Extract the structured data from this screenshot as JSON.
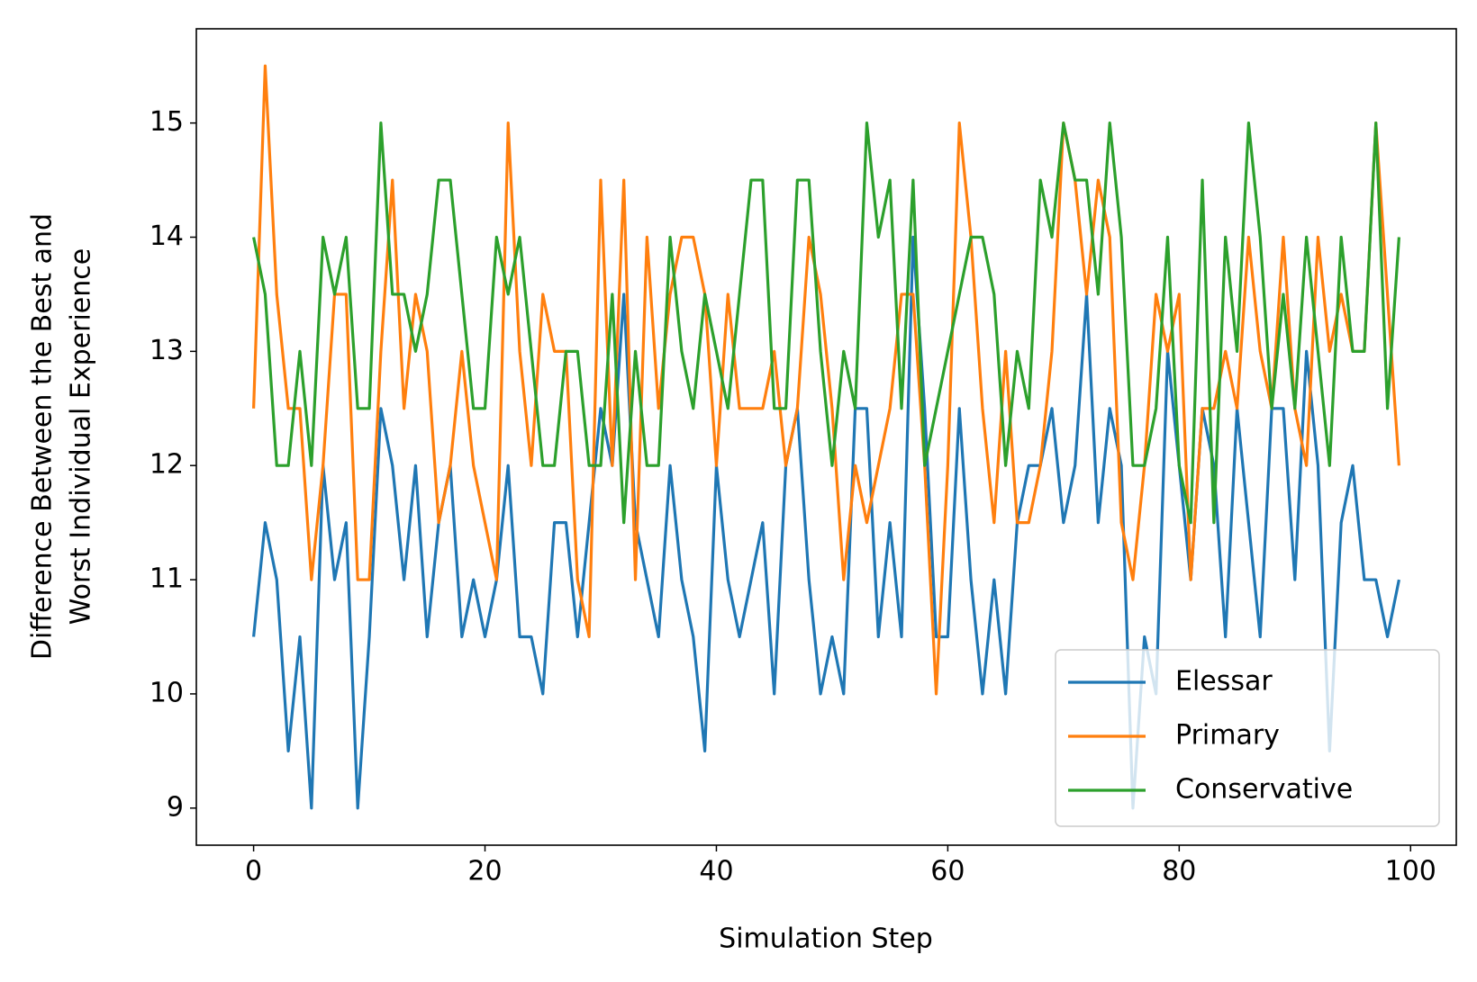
{
  "chart_data": {
    "type": "line",
    "xlabel": "Simulation Step",
    "ylabel": [
      "Difference Between the Best and",
      "Worst Individual Experience"
    ],
    "x": [
      0,
      1,
      2,
      3,
      4,
      5,
      6,
      7,
      8,
      9,
      10,
      11,
      12,
      13,
      14,
      15,
      16,
      17,
      18,
      19,
      20,
      21,
      22,
      23,
      24,
      25,
      26,
      27,
      28,
      29,
      30,
      31,
      32,
      33,
      34,
      35,
      36,
      37,
      38,
      39,
      40,
      41,
      42,
      43,
      44,
      45,
      46,
      47,
      48,
      49,
      50,
      51,
      52,
      53,
      54,
      55,
      56,
      57,
      58,
      59,
      60,
      61,
      62,
      63,
      64,
      65,
      66,
      67,
      68,
      69,
      70,
      71,
      72,
      73,
      74,
      75,
      76,
      77,
      78,
      79,
      80,
      81,
      82,
      83,
      84,
      85,
      86,
      87,
      88,
      89,
      90,
      91,
      92,
      93,
      94,
      95,
      96,
      97,
      98,
      99
    ],
    "series": [
      {
        "name": "Elessar",
        "color": "#1f77b4",
        "values": [
          10.5,
          11.5,
          11,
          9.5,
          10.5,
          9,
          12,
          11,
          11.5,
          9,
          10.5,
          12.5,
          12,
          11,
          12,
          10.5,
          11.5,
          12,
          10.5,
          11,
          10.5,
          11,
          12,
          10.5,
          10.5,
          10,
          11.5,
          11.5,
          10.5,
          11.5,
          12.5,
          12,
          13.5,
          11.5,
          11,
          10.5,
          12,
          11,
          10.5,
          9.5,
          12,
          11,
          10.5,
          11,
          11.5,
          10,
          12,
          12.5,
          11,
          10,
          10.5,
          10,
          12.5,
          12.5,
          10.5,
          11.5,
          10.5,
          14,
          12.5,
          10.5,
          10.5,
          12.5,
          11,
          10,
          11,
          10,
          11.5,
          12,
          12,
          12.5,
          11.5,
          12,
          13.5,
          11.5,
          12.5,
          12,
          9,
          10.5,
          10,
          13,
          12,
          11,
          12.5,
          12,
          10.5,
          12.5,
          11.5,
          10.5,
          12.5,
          12.5,
          11,
          13,
          12,
          9.5,
          11.5,
          12,
          11,
          11,
          10.5,
          11
        ]
      },
      {
        "name": "Primary",
        "color": "#ff7f0e",
        "values": [
          12.5,
          15.5,
          13.5,
          12.5,
          12.5,
          11,
          12,
          13.5,
          13.5,
          11,
          11,
          13,
          14.5,
          12.5,
          13.5,
          13,
          11.5,
          12,
          13,
          12,
          11.5,
          11,
          15,
          13,
          12,
          13.5,
          13,
          13,
          11,
          10.5,
          14.5,
          12,
          14.5,
          11,
          14,
          12.5,
          13.5,
          14,
          14,
          13.5,
          12,
          13.5,
          12.5,
          12.5,
          12.5,
          13,
          12,
          12.5,
          14,
          13.5,
          12.5,
          11,
          12,
          11.5,
          12,
          12.5,
          13.5,
          13.5,
          12,
          10,
          12,
          15,
          14,
          12.5,
          11.5,
          13,
          11.5,
          11.5,
          12,
          13,
          15,
          14.5,
          13.5,
          14.5,
          14,
          11.5,
          11,
          12,
          13.5,
          13,
          13.5,
          11,
          12.5,
          12.5,
          13,
          12.5,
          14,
          13,
          12.5,
          14,
          12.5,
          12,
          14,
          13,
          13.5,
          13,
          13,
          15,
          13.5,
          12
        ]
      },
      {
        "name": "Conservative",
        "color": "#2ca02c",
        "values": [
          14,
          13.5,
          12,
          12,
          13,
          12,
          14,
          13.5,
          14,
          12.5,
          12.5,
          15,
          13.5,
          13.5,
          13,
          13.5,
          14.5,
          14.5,
          13.5,
          12.5,
          12.5,
          14,
          13.5,
          14,
          13,
          12,
          12,
          13,
          13,
          12,
          12,
          13.5,
          11.5,
          13,
          12,
          12,
          14,
          13,
          12.5,
          13.5,
          13,
          12.5,
          13.5,
          14.5,
          14.5,
          12.5,
          12.5,
          14.5,
          14.5,
          13,
          12,
          13,
          12.5,
          15,
          14,
          14.5,
          12.5,
          14.5,
          12,
          12.5,
          13,
          13.5,
          14,
          14,
          13.5,
          12,
          13,
          12.5,
          14.5,
          14,
          15,
          14.5,
          14.5,
          13.5,
          15,
          14,
          12,
          12,
          12.5,
          14,
          12,
          11.5,
          14.5,
          11.5,
          14,
          13,
          15,
          14,
          12.5,
          13.5,
          12.5,
          14,
          13,
          12,
          14,
          13,
          13,
          15,
          12.5,
          14
        ]
      }
    ],
    "xlim": [
      -4.95,
      103.95
    ],
    "xticks": [
      0,
      20,
      40,
      60,
      80,
      100
    ],
    "ylim": [
      8.675,
      15.825
    ],
    "yticks": [
      9,
      10,
      11,
      12,
      13,
      14,
      15
    ],
    "legend": "lower right"
  }
}
